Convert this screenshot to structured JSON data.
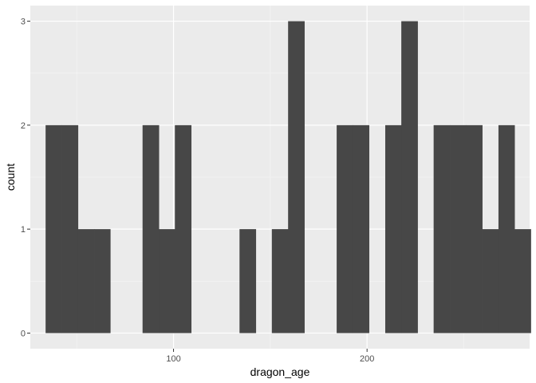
{
  "chart_data": {
    "type": "bar",
    "subtype": "histogram",
    "title": "",
    "xlabel": "dragon_age",
    "ylabel": "count",
    "xlim": [
      26,
      284
    ],
    "ylim": [
      -0.15,
      3.15
    ],
    "x_ticks": [
      100,
      200
    ],
    "x_tick_labels": [
      "100",
      "200"
    ],
    "x_minor_ticks": [
      50,
      150,
      250
    ],
    "y_ticks": [
      0,
      1,
      2,
      3
    ],
    "y_tick_labels": [
      "0",
      "1",
      "2",
      "3"
    ],
    "y_minor_ticks": [
      0.5,
      1.5,
      2.5
    ],
    "grid": true,
    "bins": [
      {
        "x0": 33.9,
        "x1": 42.3,
        "count": 2
      },
      {
        "x0": 42.3,
        "x1": 50.6,
        "count": 2
      },
      {
        "x0": 50.6,
        "x1": 59.0,
        "count": 1
      },
      {
        "x0": 59.0,
        "x1": 67.3,
        "count": 1
      },
      {
        "x0": 84.0,
        "x1": 92.4,
        "count": 2
      },
      {
        "x0": 92.4,
        "x1": 100.7,
        "count": 1
      },
      {
        "x0": 100.7,
        "x1": 109.1,
        "count": 2
      },
      {
        "x0": 134.1,
        "x1": 142.5,
        "count": 1
      },
      {
        "x0": 150.8,
        "x1": 159.2,
        "count": 1
      },
      {
        "x0": 159.2,
        "x1": 167.6,
        "count": 3
      },
      {
        "x0": 184.3,
        "x1": 192.6,
        "count": 2
      },
      {
        "x0": 192.6,
        "x1": 201.0,
        "count": 2
      },
      {
        "x0": 209.4,
        "x1": 217.7,
        "count": 2
      },
      {
        "x0": 217.7,
        "x1": 226.1,
        "count": 3
      },
      {
        "x0": 234.4,
        "x1": 242.8,
        "count": 2
      },
      {
        "x0": 242.8,
        "x1": 251.2,
        "count": 2
      },
      {
        "x0": 251.2,
        "x1": 259.5,
        "count": 2
      },
      {
        "x0": 259.5,
        "x1": 267.9,
        "count": 1
      },
      {
        "x0": 267.9,
        "x1": 276.2,
        "count": 2
      },
      {
        "x0": 276.2,
        "x1": 284.6,
        "count": 1
      }
    ],
    "colors": {
      "bar": "#474747",
      "panel": "#ebebeb",
      "grid_major": "#ffffff",
      "grid_minor": "#f5f5f5"
    }
  }
}
